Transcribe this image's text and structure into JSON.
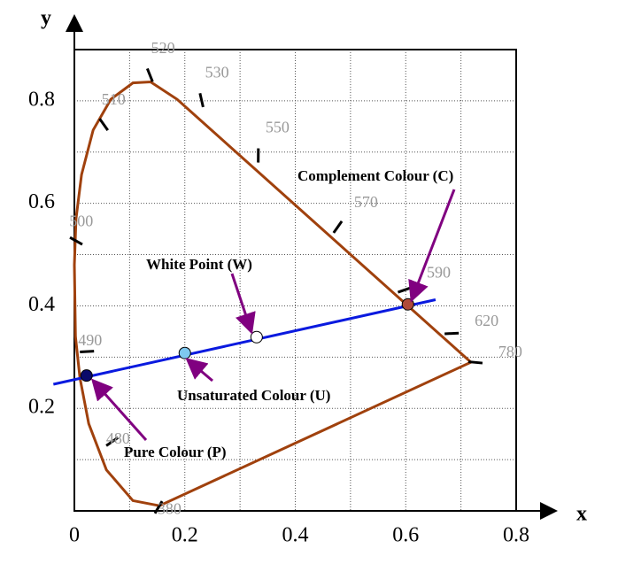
{
  "chart_data": {
    "type": "chromaticity",
    "x_label": "x",
    "y_label": "y",
    "xlim": [
      0,
      0.8
    ],
    "ylim": [
      0,
      0.9
    ],
    "xticks": [
      0,
      0.2,
      0.4,
      0.6,
      0.8
    ],
    "yticks": [
      0.2,
      0.4,
      0.6,
      0.8
    ],
    "xgrid": [
      0.1,
      0.2,
      0.3,
      0.4,
      0.5,
      0.6,
      0.7
    ],
    "ygrid": [
      0.1,
      0.2,
      0.3,
      0.4,
      0.5,
      0.6,
      0.7,
      0.8
    ],
    "locus": {
      "color": "#a0410d",
      "x": [
        0.154,
        0.106,
        0.058,
        0.026,
        0.01,
        0.002,
        0.0,
        0.003,
        0.013,
        0.034,
        0.066,
        0.106,
        0.138,
        0.186,
        0.718
      ],
      "y": [
        0.01,
        0.02,
        0.08,
        0.17,
        0.26,
        0.34,
        0.48,
        0.57,
        0.656,
        0.743,
        0.803,
        0.835,
        0.837,
        0.803,
        0.29
      ]
    },
    "wavelengths": {
      "labels": [
        "520",
        "530",
        "510",
        "550",
        "570",
        "500",
        "590",
        "620",
        "490",
        "780",
        "480",
        "380"
      ],
      "x": [
        0.138,
        0.231,
        0.055,
        0.333,
        0.475,
        0.006,
        0.595,
        0.68,
        0.026,
        0.723,
        0.071,
        0.154
      ],
      "y": [
        0.847,
        0.798,
        0.751,
        0.69,
        0.551,
        0.525,
        0.43,
        0.346,
        0.311,
        0.29,
        0.137,
        0.01
      ]
    },
    "line": {
      "color": "#0a1adf",
      "x": [
        -0.038,
        0.654
      ],
      "y": [
        0.247,
        0.412
      ]
    },
    "points": {
      "x": [
        0.022,
        0.2,
        0.33,
        0.604
      ],
      "y": [
        0.264,
        0.308,
        0.339,
        0.403
      ],
      "colors": [
        "#0a0a6a",
        "#7ec8f0",
        "#ffffff",
        "#b04a3a"
      ]
    },
    "annotations": [
      "Pure Colour (P)",
      "Unsaturated Colour (U)",
      "White Point (W)",
      "Complement Colour (C)"
    ]
  }
}
